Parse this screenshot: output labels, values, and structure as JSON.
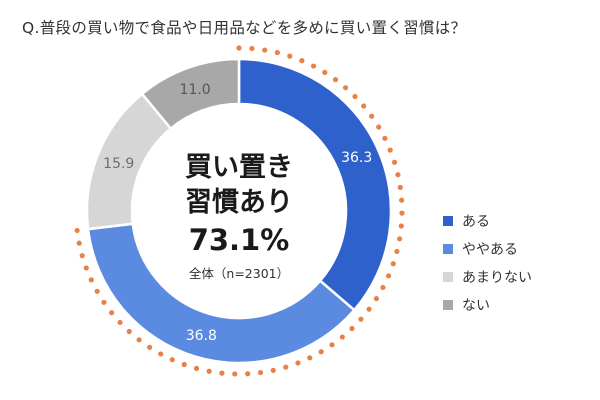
{
  "question": "Q.普段の買い物で食品や日用品などを多めに買い置く習慣は？",
  "center": {
    "line1": "買い置き",
    "line2": "習慣あり",
    "value": "73.1%",
    "base": "全体（n=2301）"
  },
  "chart_data": {
    "type": "pie",
    "categories": [
      "ある",
      "ややある",
      "あまりない",
      "ない"
    ],
    "values": [
      36.3,
      36.8,
      15.9,
      11.0
    ],
    "value_labels": [
      "36.3",
      "36.8",
      "15.9",
      "11.0"
    ],
    "colors": [
      "#2f61cc",
      "#5a8be0",
      "#d6d6d6",
      "#a8a8a8"
    ],
    "label_colors": [
      "#ffffff",
      "#ffffff",
      "#707070",
      "#555555"
    ],
    "highlight_total": "73.1%",
    "highlight_color": "#e88148",
    "legend_position": "right"
  }
}
